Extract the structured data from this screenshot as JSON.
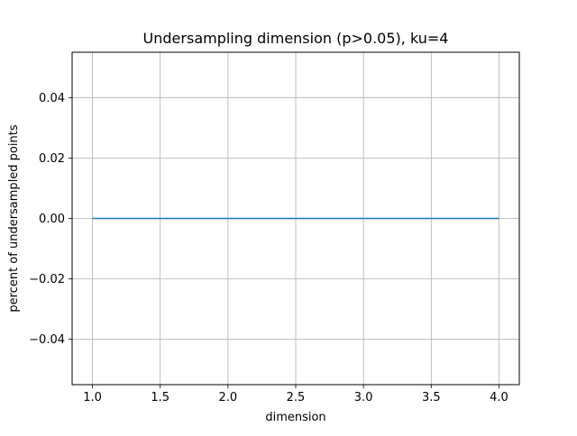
{
  "chart_data": {
    "type": "line",
    "title": "Undersampling dimension (p>0.05), ku=4",
    "xlabel": "dimension",
    "ylabel": "percent of undersampled points",
    "xlim": [
      0.85,
      4.15
    ],
    "ylim": [
      -0.055,
      0.055
    ],
    "xticks": [
      1.0,
      1.5,
      2.0,
      2.5,
      3.0,
      3.5,
      4.0
    ],
    "xtick_labels": [
      "1.0",
      "1.5",
      "2.0",
      "2.5",
      "3.0",
      "3.5",
      "4.0"
    ],
    "yticks": [
      -0.04,
      -0.02,
      0.0,
      0.02,
      0.04
    ],
    "ytick_labels": [
      "−0.04",
      "−0.02",
      "0.00",
      "0.02",
      "0.04"
    ],
    "grid": true,
    "series": [
      {
        "x": [
          1,
          2,
          3,
          4
        ],
        "y": [
          0,
          0,
          0,
          0
        ],
        "color": "#1f77b4"
      }
    ]
  }
}
